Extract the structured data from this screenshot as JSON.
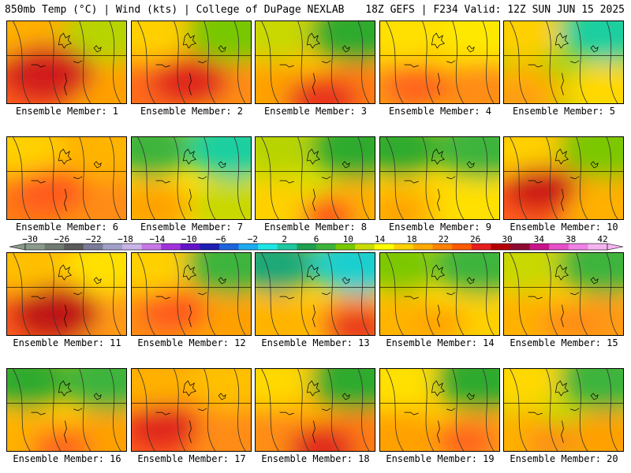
{
  "header": {
    "left": "850mb Temp (°C) | Wind (kts) | College of DuPage NEXLAB",
    "right": "18Z GEFS | F234 Valid: 12Z SUN JUN 15 2025"
  },
  "panels": [
    {
      "label": "Ensemble Member: 1",
      "base": "#ff9800",
      "nw": "#ffb000",
      "ne": "#b8d400",
      "sw": "#ff5a1e",
      "se": "#ffa000",
      "hot": "#d21e1e",
      "hx": 0.33,
      "hy": 0.62,
      "hr": 0.38
    },
    {
      "label": "Ensemble Member: 2",
      "base": "#ffa000",
      "nw": "#ffd000",
      "ne": "#78c800",
      "sw": "#ff6a1e",
      "se": "#ff8c14",
      "hot": "#e0281e",
      "hx": 0.48,
      "hy": 0.72,
      "hr": 0.32
    },
    {
      "label": "Ensemble Member: 3",
      "base": "#ffc000",
      "nw": "#c8d800",
      "ne": "#2eaa2e",
      "sw": "#ffa000",
      "se": "#ff7a14",
      "hot": "#e8321e",
      "hx": 0.55,
      "hy": 0.95,
      "hr": 0.3
    },
    {
      "label": "Ensemble Member: 4",
      "base": "#ffc800",
      "nw": "#ffe000",
      "ne": "#ffe800",
      "sw": "#ff9a14",
      "se": "#ff8c14",
      "hot": "#ff641e",
      "hx": 0.3,
      "hy": 0.8,
      "hr": 0.28
    },
    {
      "label": "Ensemble Member: 5",
      "base": "#aad400",
      "nw": "#ffd000",
      "ne": "#1ecfa0",
      "sw": "#ffb000",
      "se": "#ffd800",
      "hot": "#ff9a14",
      "hx": 0.1,
      "hy": 0.95,
      "hr": 0.22
    },
    {
      "label": "Ensemble Member: 6",
      "base": "#ffa000",
      "nw": "#ffd000",
      "ne": "#ffb400",
      "sw": "#ff7a14",
      "se": "#ff8c14",
      "hot": "#ff5a1e",
      "hx": 0.35,
      "hy": 0.65,
      "hr": 0.3
    },
    {
      "label": "Ensemble Member: 7",
      "base": "#ffe000",
      "nw": "#3cb43c",
      "ne": "#1ecfa0",
      "sw": "#ffb400",
      "se": "#c8d800",
      "hot": "#ffa000",
      "hx": 0.2,
      "hy": 0.85,
      "hr": 0.25
    },
    {
      "label": "Ensemble Member: 8",
      "base": "#d8e000",
      "nw": "#b8d400",
      "ne": "#2eaa2e",
      "sw": "#ffd000",
      "se": "#ffb000",
      "hot": "#ff4a1e",
      "hx": 0.6,
      "hy": 0.95,
      "hr": 0.22
    },
    {
      "label": "Ensemble Member: 9",
      "base": "#ffd800",
      "nw": "#2eaa2e",
      "ne": "#3cb43c",
      "sw": "#ffc000",
      "se": "#ffe000",
      "hot": "#ffa000",
      "hx": 0.15,
      "hy": 0.9,
      "hr": 0.22
    },
    {
      "label": "Ensemble Member: 10",
      "base": "#ff9a14",
      "nw": "#ffd000",
      "ne": "#7cc800",
      "sw": "#ff5a1e",
      "se": "#ffb000",
      "hot": "#cc1414",
      "hx": 0.3,
      "hy": 0.62,
      "hr": 0.3
    },
    {
      "label": "Ensemble Member: 11",
      "base": "#ff8c14",
      "nw": "#ffc000",
      "ne": "#ffe000",
      "sw": "#ff5a1e",
      "se": "#ff9a14",
      "hot": "#c01414",
      "hx": 0.4,
      "hy": 0.72,
      "hr": 0.36
    },
    {
      "label": "Ensemble Member: 12",
      "base": "#ffb000",
      "nw": "#ffd000",
      "ne": "#3cb43c",
      "sw": "#ff8c14",
      "se": "#ffa000",
      "hot": "#ff5a1e",
      "hx": 0.35,
      "hy": 0.7,
      "hr": 0.28
    },
    {
      "label": "Ensemble Member: 13",
      "base": "#ffd000",
      "nw": "#1ea878",
      "ne": "#1ecfcf",
      "sw": "#ffb400",
      "se": "#ff8c14",
      "hot": "#e8321e",
      "hx": 0.85,
      "hy": 0.9,
      "hr": 0.25
    },
    {
      "label": "Ensemble Member: 14",
      "base": "#ffd800",
      "nw": "#7cc800",
      "ne": "#3cb43c",
      "sw": "#ffb400",
      "se": "#ffd000",
      "hot": "#ffa000",
      "hx": 0.5,
      "hy": 0.85,
      "hr": 0.22
    },
    {
      "label": "Ensemble Member: 15",
      "base": "#ffc800",
      "nw": "#c8d800",
      "ne": "#3cb43c",
      "sw": "#ffb000",
      "se": "#ff9a14",
      "hot": "#ff8c14",
      "hx": 0.55,
      "hy": 0.85,
      "hr": 0.25
    },
    {
      "label": "Ensemble Member: 16",
      "base": "#ffc800",
      "nw": "#2eaa2e",
      "ne": "#3cb43c",
      "sw": "#ffb000",
      "se": "#ffa000",
      "hot": "#ff641e",
      "hx": 0.45,
      "hy": 0.95,
      "hr": 0.25
    },
    {
      "label": "Ensemble Member: 17",
      "base": "#ff8c14",
      "nw": "#ffb000",
      "ne": "#ffc000",
      "sw": "#ff5a1e",
      "se": "#ff8c14",
      "hot": "#e0281e",
      "hx": 0.25,
      "hy": 0.7,
      "hr": 0.3
    },
    {
      "label": "Ensemble Member: 18",
      "base": "#ffb000",
      "nw": "#ffd800",
      "ne": "#2eaa2e",
      "sw": "#ff8c14",
      "se": "#ff7a14",
      "hot": "#e0281e",
      "hx": 0.55,
      "hy": 0.95,
      "hr": 0.28
    },
    {
      "label": "Ensemble Member: 19",
      "base": "#ffc800",
      "nw": "#ffe000",
      "ne": "#2eaa2e",
      "sw": "#ffa000",
      "se": "#ff9a14",
      "hot": "#ff641e",
      "hx": 0.7,
      "hy": 0.88,
      "hr": 0.25
    },
    {
      "label": "Ensemble Member: 20",
      "base": "#c8d800",
      "nw": "#ffd800",
      "ne": "#3cb43c",
      "sw": "#ffb000",
      "se": "#ffa000",
      "hot": "#ff8c14",
      "hx": 0.4,
      "hy": 0.9,
      "hr": 0.22
    }
  ],
  "colorbar": {
    "labels": [
      "−30",
      "−26",
      "−22",
      "−18",
      "−14",
      "−10",
      "−6",
      "−2",
      "2",
      "6",
      "10",
      "14",
      "18",
      "22",
      "26",
      "30",
      "34",
      "38",
      "42"
    ],
    "colors": [
      "#8a9a8a",
      "#707a70",
      "#5a5a5a",
      "#7a7a9a",
      "#a0a0c8",
      "#c8b4e6",
      "#c878e6",
      "#a032dc",
      "#6414c8",
      "#1e1eb4",
      "#1e64dc",
      "#1eaaf0",
      "#1ee6e6",
      "#1ec8a0",
      "#1ea050",
      "#3cb43c",
      "#78c800",
      "#c8dc00",
      "#ffff00",
      "#ffd200",
      "#ffaa00",
      "#ff8200",
      "#ff5a00",
      "#e61e1e",
      "#b40000",
      "#8c0a32",
      "#c8148c",
      "#e650c8",
      "#f082e6",
      "#f5b4f0"
    ]
  }
}
